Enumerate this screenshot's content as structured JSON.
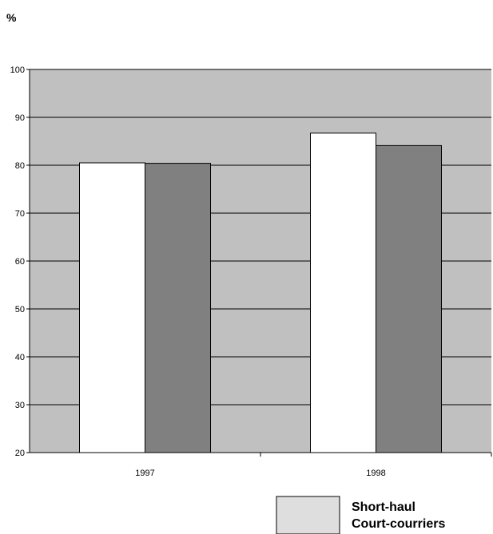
{
  "chart_data": {
    "type": "bar",
    "title": "",
    "ylabel": "%",
    "xlabel": "",
    "categories": [
      "1997",
      "1998"
    ],
    "ylim": [
      20,
      100
    ],
    "yticks": [
      20,
      30,
      40,
      50,
      60,
      70,
      80,
      90,
      100
    ],
    "grid": true,
    "series": [
      {
        "values": [
          80.5,
          86.7
        ],
        "color": "#ffffff"
      },
      {
        "values": [
          80.4,
          84.1
        ],
        "color": "#808080"
      }
    ],
    "plot_background": "#c0c0c0",
    "legend": {
      "placement": "bottom-right",
      "swatch_color": "#dedede",
      "lines": [
        "Short-haul",
        "Court-courriers"
      ]
    }
  }
}
